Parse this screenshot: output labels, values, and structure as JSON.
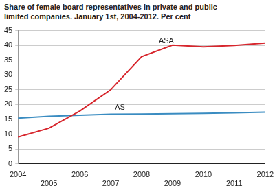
{
  "chart_data": {
    "type": "line",
    "title": "Share of female board representatives in private and public limited companies. January 1st, 2004-2012. Per cent",
    "categories": [
      "2004",
      "2005",
      "2006",
      "2007",
      "2008",
      "2009",
      "2010",
      "2011",
      "2012"
    ],
    "series": [
      {
        "name": "ASA",
        "color": "#d7262d",
        "values": [
          9.0,
          12.0,
          17.8,
          25.0,
          36.2,
          40.1,
          39.5,
          40.0,
          40.8
        ]
      },
      {
        "name": "AS",
        "color": "#3a8cc1",
        "values": [
          15.4,
          16.0,
          16.4,
          16.7,
          16.8,
          16.9,
          17.0,
          17.2,
          17.4
        ]
      }
    ],
    "ylim": [
      0,
      45
    ],
    "yticks": [
      0,
      5,
      10,
      15,
      20,
      25,
      30,
      35,
      40,
      45
    ],
    "grid": true
  }
}
